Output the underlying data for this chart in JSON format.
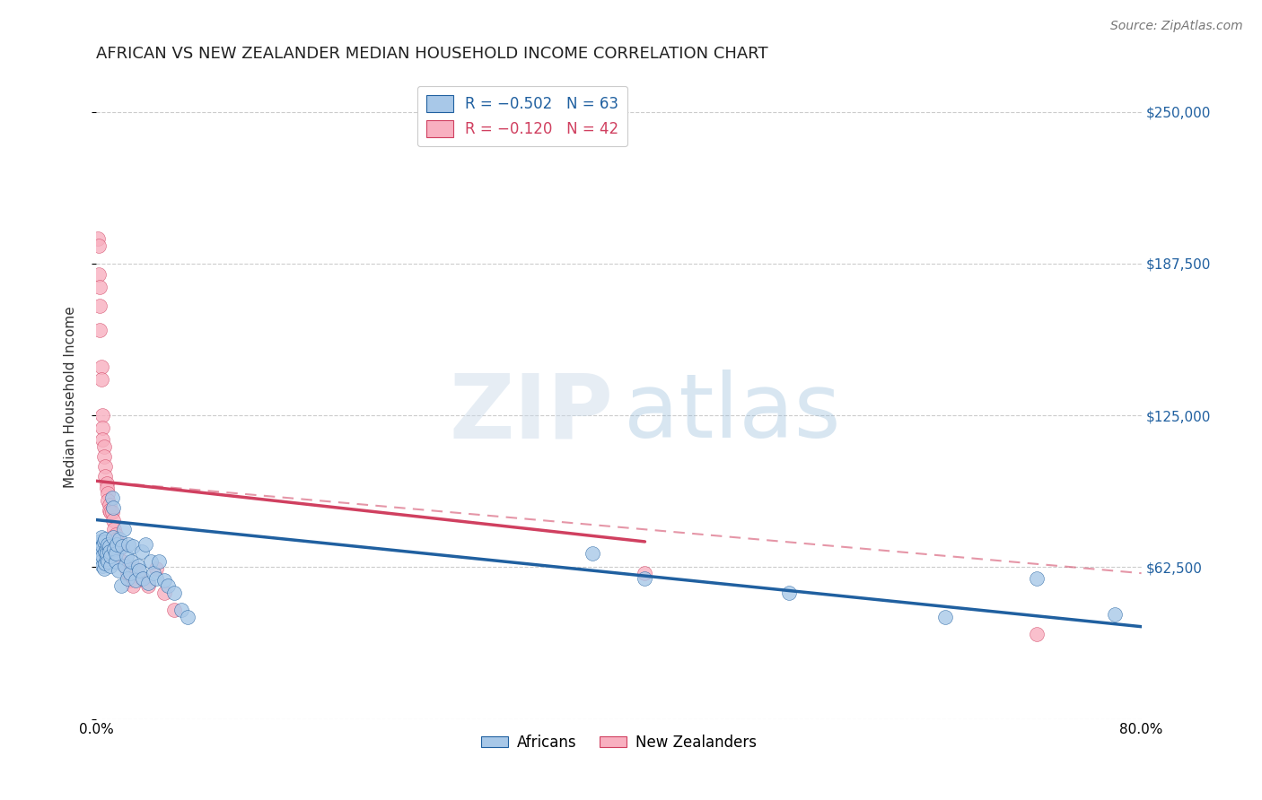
{
  "title": "AFRICAN VS NEW ZEALANDER MEDIAN HOUSEHOLD INCOME CORRELATION CHART",
  "source": "Source: ZipAtlas.com",
  "ylabel": "Median Household Income",
  "yticks": [
    0,
    62500,
    125000,
    187500,
    250000
  ],
  "ytick_labels": [
    "",
    "$62,500",
    "$125,000",
    "$187,500",
    "$250,000"
  ],
  "xlim": [
    0.0,
    0.8
  ],
  "ylim": [
    0,
    265000
  ],
  "xtick_positions": [
    0.0,
    0.1,
    0.2,
    0.3,
    0.4,
    0.5,
    0.6,
    0.7,
    0.8
  ],
  "xtick_labels": [
    "0.0%",
    "",
    "",
    "",
    "",
    "",
    "",
    "",
    "80.0%"
  ],
  "watermark_zip": "ZIP",
  "watermark_atlas": "atlas",
  "legend_r_blue": "-0.502",
  "legend_n_blue": "63",
  "legend_r_pink": "-0.120",
  "legend_n_pink": "42",
  "blue_label": "Africans",
  "pink_label": "New Zealanders",
  "blue_color": "#a8c8e8",
  "pink_color": "#f8b0c0",
  "blue_line_color": "#2060a0",
  "pink_line_color": "#d04060",
  "blue_trend": [
    0.0,
    82000,
    0.8,
    38000
  ],
  "pink_solid_trend": [
    0.0,
    98000,
    0.42,
    73000
  ],
  "pink_dash_trend": [
    0.0,
    98000,
    0.8,
    60000
  ],
  "background_color": "#ffffff",
  "grid_color": "#cccccc",
  "title_fontsize": 13,
  "source_fontsize": 10,
  "axis_label_fontsize": 11,
  "tick_fontsize": 11,
  "legend_fontsize": 12,
  "africans_x": [
    0.002,
    0.003,
    0.003,
    0.004,
    0.004,
    0.005,
    0.005,
    0.005,
    0.006,
    0.006,
    0.007,
    0.007,
    0.007,
    0.008,
    0.008,
    0.008,
    0.009,
    0.009,
    0.01,
    0.01,
    0.011,
    0.011,
    0.012,
    0.013,
    0.013,
    0.014,
    0.015,
    0.015,
    0.016,
    0.017,
    0.018,
    0.019,
    0.02,
    0.021,
    0.022,
    0.023,
    0.024,
    0.025,
    0.026,
    0.027,
    0.028,
    0.03,
    0.032,
    0.033,
    0.035,
    0.036,
    0.038,
    0.04,
    0.042,
    0.044,
    0.046,
    0.048,
    0.052,
    0.055,
    0.06,
    0.065,
    0.07,
    0.38,
    0.42,
    0.53,
    0.65,
    0.72,
    0.78
  ],
  "africans_y": [
    73000,
    70000,
    68000,
    65000,
    75000,
    63000,
    71000,
    67000,
    73000,
    62000,
    69000,
    74000,
    64000,
    70000,
    66000,
    68000,
    72000,
    65000,
    71000,
    69000,
    63000,
    67000,
    91000,
    87000,
    75000,
    70000,
    65000,
    68000,
    72000,
    61000,
    74000,
    55000,
    71000,
    78000,
    63000,
    67000,
    58000,
    72000,
    60000,
    65000,
    71000,
    57000,
    63000,
    61000,
    69000,
    58000,
    72000,
    56000,
    65000,
    60000,
    58000,
    65000,
    57000,
    55000,
    52000,
    45000,
    42000,
    68000,
    58000,
    52000,
    42000,
    58000,
    43000
  ],
  "nzlanders_x": [
    0.001,
    0.002,
    0.002,
    0.003,
    0.003,
    0.003,
    0.004,
    0.004,
    0.005,
    0.005,
    0.005,
    0.006,
    0.006,
    0.007,
    0.007,
    0.008,
    0.008,
    0.009,
    0.009,
    0.01,
    0.01,
    0.011,
    0.012,
    0.013,
    0.014,
    0.015,
    0.016,
    0.017,
    0.018,
    0.02,
    0.022,
    0.024,
    0.026,
    0.028,
    0.03,
    0.035,
    0.04,
    0.046,
    0.052,
    0.06,
    0.42,
    0.72
  ],
  "nzlanders_y": [
    198000,
    195000,
    183000,
    178000,
    170000,
    160000,
    145000,
    140000,
    125000,
    120000,
    115000,
    112000,
    108000,
    104000,
    100000,
    97000,
    95000,
    93000,
    90000,
    88000,
    86000,
    85000,
    85000,
    82000,
    78000,
    76000,
    74000,
    72000,
    70000,
    65000,
    63000,
    60000,
    57000,
    55000,
    62000,
    58000,
    55000,
    62000,
    52000,
    45000,
    60000,
    35000
  ]
}
